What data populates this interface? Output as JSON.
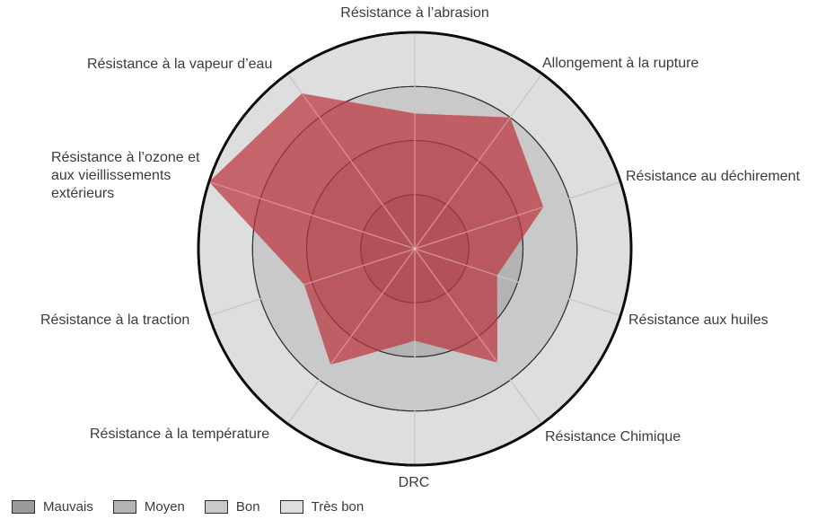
{
  "chart_data": {
    "type": "radar",
    "title": "",
    "axes_count": 10,
    "axes": [
      {
        "label": "Résistance à l’abrasion",
        "value": 2.5
      },
      {
        "label": "Allongement à la rupture",
        "value": 3.0
      },
      {
        "label": "Résistance au déchirement",
        "value": 2.5
      },
      {
        "label": "Résistance aux huiles",
        "value": 1.6
      },
      {
        "label": "Résistance Chimique",
        "value": 2.6
      },
      {
        "label": "DRC",
        "value": 1.7
      },
      {
        "label": "Résistance à la température",
        "value": 2.65
      },
      {
        "label": "Résistance à la traction",
        "value": 2.15
      },
      {
        "label": "Résistance à l’ozone et aux vieillissements extérieurs",
        "value": 4.0
      },
      {
        "label": "Résistance à la vapeur d’eau",
        "value": 3.55
      }
    ],
    "scale": {
      "min": 0,
      "max": 4,
      "ring_labels": [
        "Mauvais",
        "Moyen",
        "Bon",
        "Très bon"
      ]
    },
    "grid": {
      "rings": 4,
      "spokes": 10,
      "ring_outline_color": "#2f2f2f",
      "outer_circle_color": "#0d0d0d",
      "spoke_color": "#c7c7c7"
    },
    "series_color": "#bc3440",
    "series_opacity": 0.72,
    "legend_position": "bottom-left"
  },
  "legend": {
    "items": [
      {
        "label": "Mauvais",
        "color": "#9b9b9b"
      },
      {
        "label": "Moyen",
        "color": "#b3b3b3"
      },
      {
        "label": "Bon",
        "color": "#c9c9c9"
      },
      {
        "label": "Très bon",
        "color": "#dedede"
      }
    ]
  }
}
